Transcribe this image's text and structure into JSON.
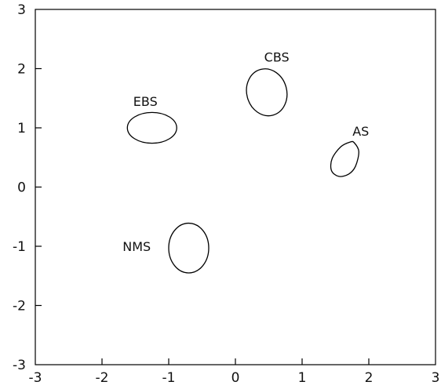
{
  "chart_data": {
    "type": "scatter",
    "title": "",
    "xlabel": "",
    "ylabel": "",
    "xlim": [
      -3,
      3
    ],
    "ylim": [
      -3,
      3
    ],
    "xticks": [
      -3,
      -2,
      -1,
      0,
      1,
      2,
      3
    ],
    "yticks": [
      -3,
      -2,
      -1,
      0,
      1,
      2,
      3
    ],
    "xtick_labels": [
      "-3",
      "-2",
      "-1",
      "0",
      "1",
      "2",
      "3"
    ],
    "ytick_labels": [
      "-3",
      "-2",
      "-1",
      "0",
      "1",
      "2",
      "3"
    ],
    "grid": false,
    "regions": [
      {
        "name": "EBS",
        "shape": "ellipse",
        "cx": -1.25,
        "cy": 1.0,
        "rx": 0.37,
        "ry": 0.26,
        "label_x": -1.35,
        "label_y": 1.45
      },
      {
        "name": "CBS",
        "shape": "ellipse",
        "cx": 0.47,
        "cy": 1.6,
        "rx": 0.3,
        "ry": 0.4,
        "rotation": -15,
        "label_x": 0.62,
        "label_y": 2.2
      },
      {
        "name": "AS",
        "shape": "blob",
        "cx": 1.65,
        "cy": 0.47,
        "rx": 0.27,
        "ry": 0.3,
        "label_x": 1.88,
        "label_y": 0.95,
        "outline": [
          [
            1.78,
            0.75
          ],
          [
            1.85,
            0.6
          ],
          [
            1.8,
            0.35
          ],
          [
            1.7,
            0.22
          ],
          [
            1.55,
            0.18
          ],
          [
            1.44,
            0.28
          ],
          [
            1.45,
            0.48
          ],
          [
            1.58,
            0.68
          ],
          [
            1.72,
            0.76
          ]
        ]
      },
      {
        "name": "NMS",
        "shape": "ellipse",
        "cx": -0.7,
        "cy": -1.03,
        "rx": 0.3,
        "ry": 0.42,
        "label_x": -1.48,
        "label_y": -1.0
      }
    ]
  }
}
